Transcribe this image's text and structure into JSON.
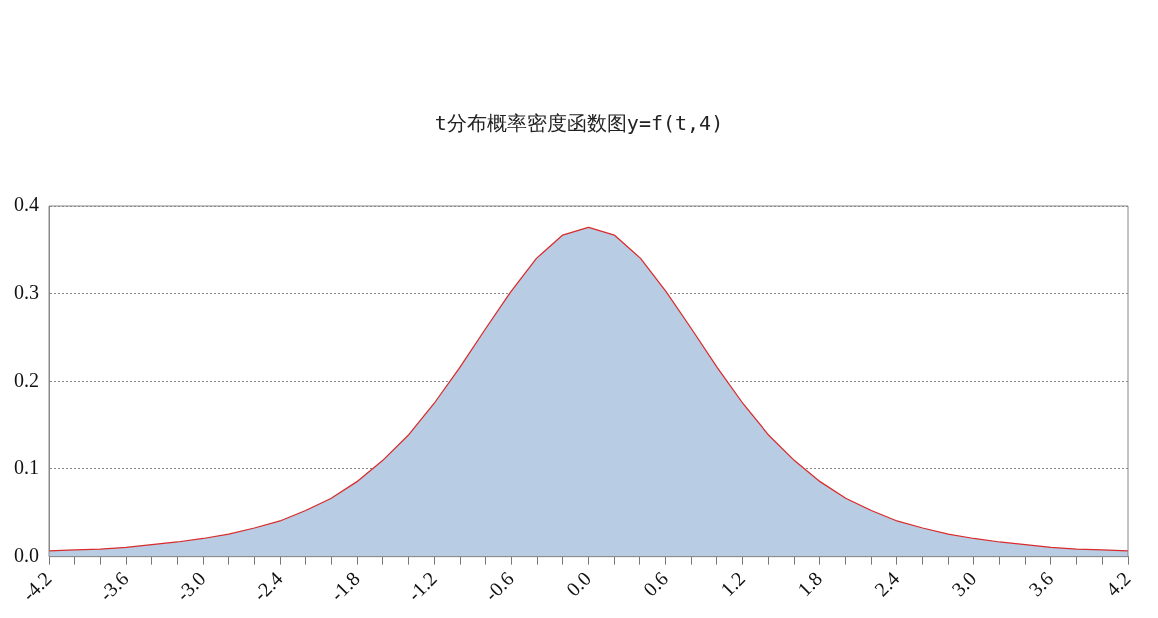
{
  "chart_data": {
    "type": "area",
    "title": "t分布概率密度函数图y=f(t,4)",
    "x": [
      -4.2,
      -4.0,
      -3.8,
      -3.6,
      -3.4,
      -3.2,
      -3.0,
      -2.8,
      -2.6,
      -2.4,
      -2.2,
      -2.0,
      -1.8,
      -1.6,
      -1.4,
      -1.2,
      -1.0,
      -0.8,
      -0.6,
      -0.4,
      -0.2,
      0,
      0.2,
      0.4,
      0.6,
      0.8,
      1.0,
      1.2,
      1.4,
      1.6,
      1.8,
      2.0,
      2.2,
      2.4,
      2.6,
      2.8,
      3.0,
      3.2,
      3.4,
      3.6,
      3.8,
      4.0,
      4.2
    ],
    "series": [
      {
        "color": "#b8cce4",
        "values": [
          0.006,
          0.007,
          0.008,
          0.01,
          0.013,
          0.016,
          0.02,
          0.025,
          0.032,
          0.04,
          0.052,
          0.066,
          0.085,
          0.109,
          0.138,
          0.174,
          0.215,
          0.259,
          0.302,
          0.34,
          0.366,
          0.375,
          0.366,
          0.34,
          0.302,
          0.259,
          0.215,
          0.174,
          0.138,
          0.109,
          0.085,
          0.066,
          0.052,
          0.04,
          0.032,
          0.025,
          0.02,
          0.016,
          0.013,
          0.01,
          0.008,
          0.007,
          0.006
        ]
      },
      {
        "type": "line",
        "color": "#d92b2b",
        "values": [
          0.006,
          0.007,
          0.008,
          0.01,
          0.013,
          0.016,
          0.02,
          0.025,
          0.032,
          0.04,
          0.052,
          0.066,
          0.085,
          0.109,
          0.138,
          0.174,
          0.215,
          0.259,
          0.302,
          0.34,
          0.366,
          0.375,
          0.366,
          0.34,
          0.302,
          0.259,
          0.215,
          0.174,
          0.138,
          0.109,
          0.085,
          0.066,
          0.052,
          0.04,
          0.032,
          0.025,
          0.02,
          0.016,
          0.013,
          0.01,
          0.008,
          0.007,
          0.006
        ]
      }
    ],
    "xlim": [
      -4.2,
      4.2
    ],
    "xticks": [
      {
        "value": -4.2,
        "label": "-4.2"
      },
      {
        "value": -4.0,
        "label": null
      },
      {
        "value": -3.8,
        "label": null
      },
      {
        "value": -3.6,
        "label": "-3.6"
      },
      {
        "value": -3.4,
        "label": null
      },
      {
        "value": -3.2,
        "label": null
      },
      {
        "value": -3.0,
        "label": "-3.0"
      },
      {
        "value": -2.8,
        "label": null
      },
      {
        "value": -2.6,
        "label": null
      },
      {
        "value": -2.4,
        "label": "-2.4"
      },
      {
        "value": -2.2,
        "label": null
      },
      {
        "value": -2.0,
        "label": null
      },
      {
        "value": -1.8,
        "label": "-1.8"
      },
      {
        "value": -1.6,
        "label": null
      },
      {
        "value": -1.4,
        "label": null
      },
      {
        "value": -1.2,
        "label": "-1.2"
      },
      {
        "value": -1.0,
        "label": null
      },
      {
        "value": -0.8,
        "label": null
      },
      {
        "value": -0.6,
        "label": "-0.6"
      },
      {
        "value": -0.4,
        "label": null
      },
      {
        "value": -0.2,
        "label": null
      },
      {
        "value": 0,
        "label": "0.0"
      },
      {
        "value": 0.2,
        "label": null
      },
      {
        "value": 0.4,
        "label": null
      },
      {
        "value": 0.6,
        "label": "0.6"
      },
      {
        "value": 0.8,
        "label": null
      },
      {
        "value": 1.0,
        "label": null
      },
      {
        "value": 1.2,
        "label": "1.2"
      },
      {
        "value": 1.4,
        "label": null
      },
      {
        "value": 1.6,
        "label": null
      },
      {
        "value": 1.8,
        "label": "1.8"
      },
      {
        "value": 2.0,
        "label": null
      },
      {
        "value": 2.2,
        "label": null
      },
      {
        "value": 2.4,
        "label": "2.4"
      },
      {
        "value": 2.6,
        "label": null
      },
      {
        "value": 2.8,
        "label": null
      },
      {
        "value": 3.0,
        "label": "3.0"
      },
      {
        "value": 3.2,
        "label": null
      },
      {
        "value": 3.4,
        "label": null
      },
      {
        "value": 3.6,
        "label": "3.6"
      },
      {
        "value": 3.8,
        "label": null
      },
      {
        "value": 4.0,
        "label": null
      },
      {
        "value": 4.2,
        "label": "4.2"
      }
    ],
    "ylim": [
      0,
      0.4
    ],
    "yticks": [
      {
        "value": 0,
        "label": "0.0"
      },
      0.1,
      0.2,
      0.3,
      0.4
    ],
    "grid": "y",
    "legend": false,
    "marker": "none",
    "line_style": "solid"
  }
}
